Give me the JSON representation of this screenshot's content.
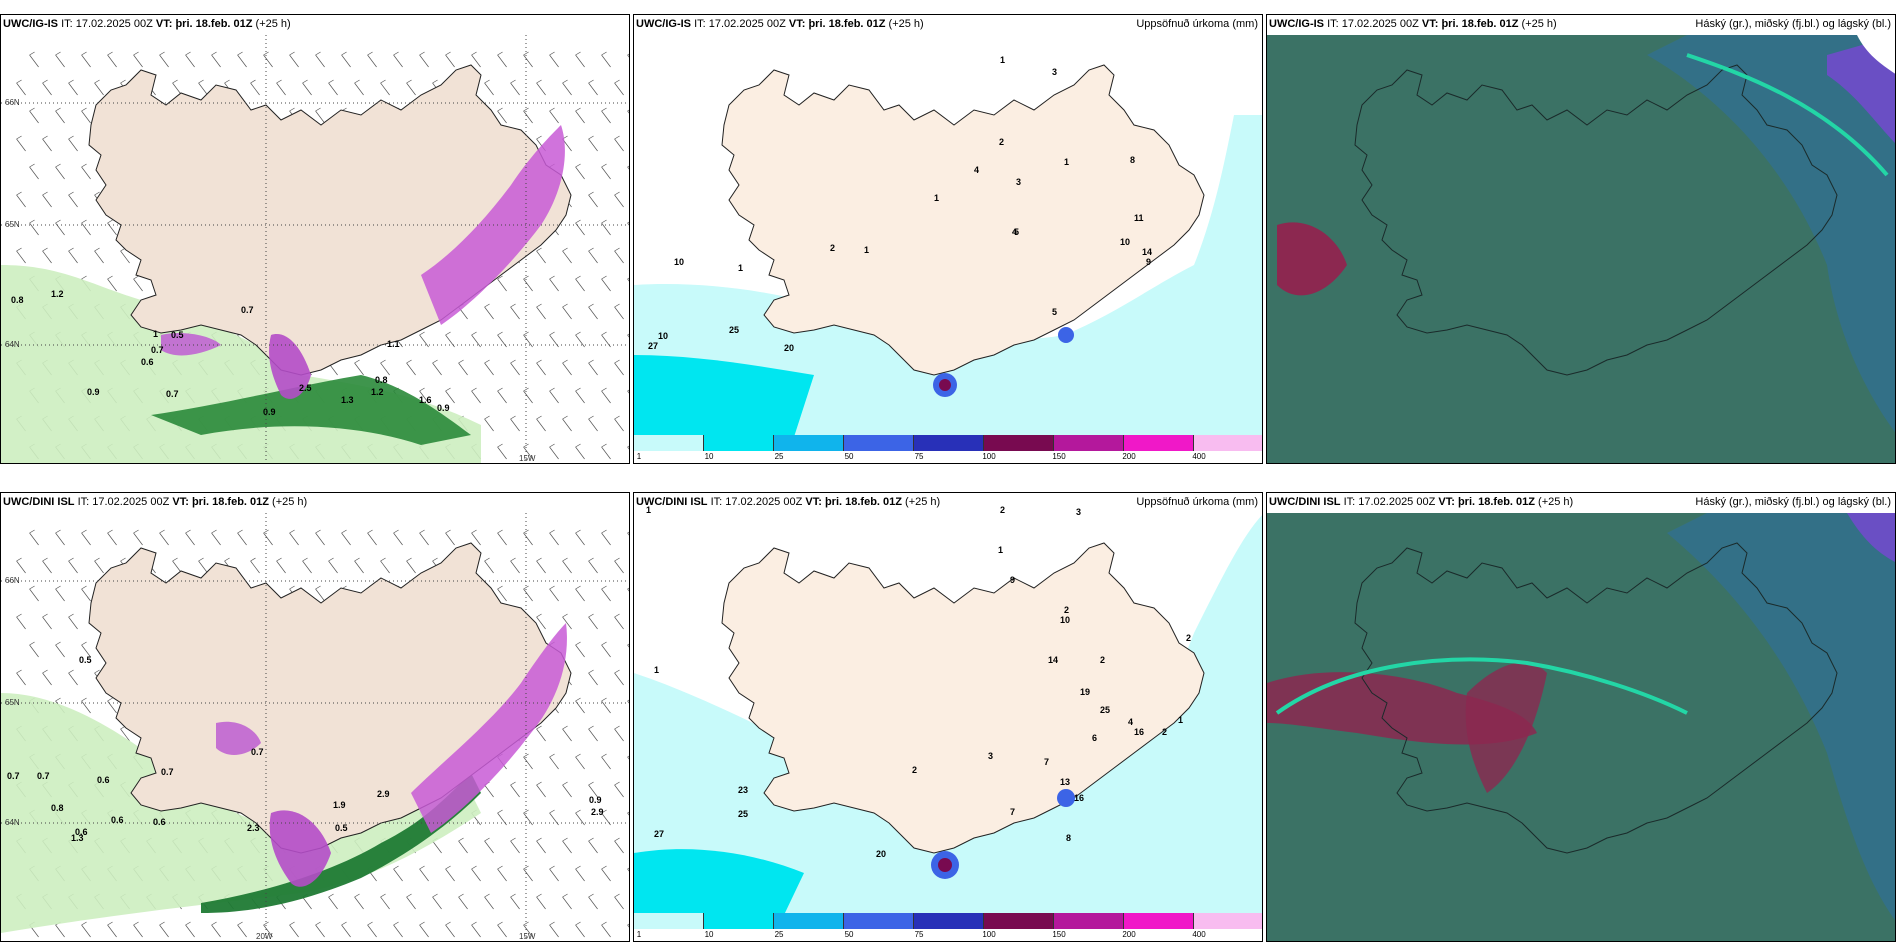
{
  "panels": [
    {
      "model": "UWC/IG-IS",
      "it_label": "IT:",
      "it": "17.02.2025 00Z",
      "vt_label": "VT:",
      "vt": "þri. 18.feb. 01Z",
      "lead": "(+25 h)",
      "right": ""
    },
    {
      "model": "UWC/IG-IS",
      "it_label": "IT:",
      "it": "17.02.2025 00Z",
      "vt_label": "VT:",
      "vt": "þri. 18.feb. 01Z",
      "lead": "(+25 h)",
      "right": "Uppsöfnuð úrkoma (mm)"
    },
    {
      "model": "UWC/IG-IS",
      "it_label": "IT:",
      "it": "17.02.2025 00Z",
      "vt_label": "VT:",
      "vt": "þri. 18.feb. 01Z",
      "lead": "(+25 h)",
      "right": "Háský (gr.), miðský (fj.bl.) og lágský (bl.)"
    },
    {
      "model": "UWC/DINI ISL",
      "it_label": "IT:",
      "it": "17.02.2025 00Z",
      "vt_label": "VT:",
      "vt": "þri. 18.feb. 01Z",
      "lead": "(+25 h)",
      "right": ""
    },
    {
      "model": "UWC/DINI ISL",
      "it_label": "IT:",
      "it": "17.02.2025 00Z",
      "vt_label": "VT:",
      "vt": "þri. 18.feb. 01Z",
      "lead": "(+25 h)",
      "right": "Uppsöfnuð úrkoma (mm)"
    },
    {
      "model": "UWC/DINI ISL",
      "it_label": "IT:",
      "it": "17.02.2025 00Z",
      "vt_label": "VT:",
      "vt": "þri. 18.feb. 01Z",
      "lead": "(+25 h)",
      "right": "Háský (gr.), miðský (fj.bl.) og lágský (bl.)"
    }
  ],
  "grid_labels": {
    "lat66": "66N",
    "lat65": "65N",
    "lat64": "64N",
    "lon20": "20W",
    "lon15": "15W"
  },
  "legend": {
    "ticks": [
      "1",
      "10",
      "25",
      "50",
      "75",
      "100",
      "150",
      "200",
      "400"
    ],
    "colors": [
      "#c8fafa",
      "#00e6f0",
      "#10b4ec",
      "#3c64e6",
      "#2830b8",
      "#780a50",
      "#b4189c",
      "#f018c8",
      "#f8bcf0"
    ]
  },
  "top_wind_labels": [
    "0.8",
    "1.2",
    "0.7",
    "1",
    "0.5",
    "0.7",
    "0.6",
    "0.9",
    "0.7",
    "2.5",
    "0.8",
    "1.2",
    "1.3",
    "1.6",
    "0.9",
    "0.9",
    "1.1"
  ],
  "top_precip_labels": [
    "1",
    "2",
    "1",
    "3",
    "4",
    "4",
    "3",
    "1",
    "1",
    "2",
    "10",
    "5",
    "8",
    "11",
    "14",
    "10",
    "9",
    "5",
    "1",
    "25",
    "10",
    "27",
    "20"
  ],
  "bottom_wind_labels": [
    "0.7",
    "0.7",
    "0.5",
    "0.6",
    "0.7",
    "0.7",
    "0.8",
    "0.6",
    "0.6",
    "0.6",
    "2.3",
    "0.5",
    "1.9",
    "2.9",
    "0.9",
    "2.9",
    "1.3"
  ],
  "bottom_precip_labels": [
    "1",
    "2",
    "3",
    "1",
    "3",
    "2",
    "1",
    "2",
    "9",
    "2",
    "10",
    "14",
    "19",
    "25",
    "16",
    "2",
    "7",
    "13",
    "16",
    "4",
    "6",
    "1",
    "2",
    "23",
    "25",
    "27",
    "20",
    "7",
    "8"
  ]
}
